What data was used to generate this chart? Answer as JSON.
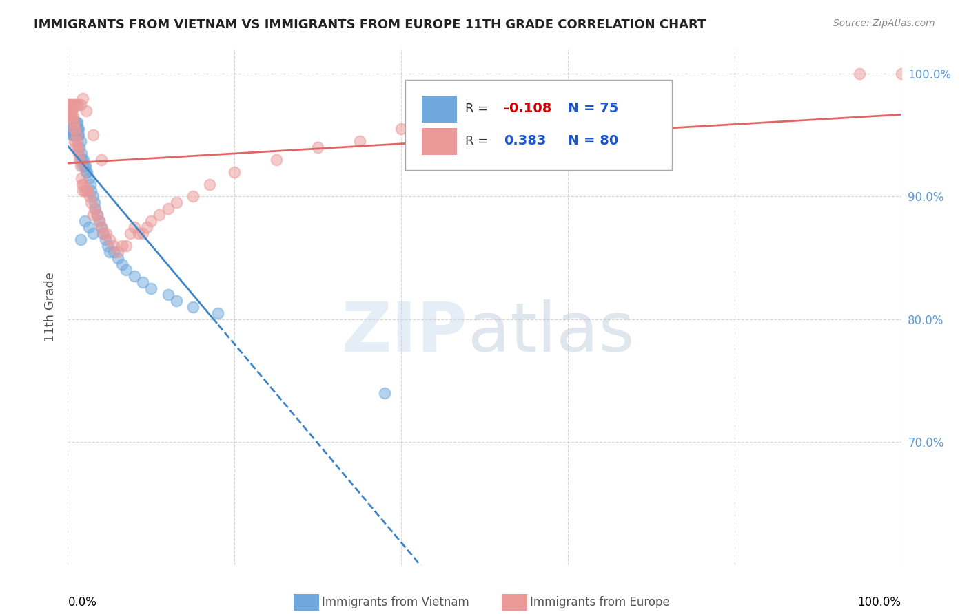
{
  "title": "IMMIGRANTS FROM VIETNAM VS IMMIGRANTS FROM EUROPE 11TH GRADE CORRELATION CHART",
  "source": "Source: ZipAtlas.com",
  "ylabel": "11th Grade",
  "xlim": [
    0.0,
    1.0
  ],
  "ylim": [
    0.6,
    1.02
  ],
  "yticks": [
    0.7,
    0.8,
    0.9,
    1.0
  ],
  "ytick_labels": [
    "70.0%",
    "80.0%",
    "90.0%",
    "100.0%"
  ],
  "legend_r_vietnam": "-0.108",
  "legend_n_vietnam": "75",
  "legend_r_europe": "0.383",
  "legend_n_europe": "80",
  "color_vietnam": "#6fa8dc",
  "color_europe": "#ea9999",
  "line_color_vietnam": "#3d85c8",
  "line_color_europe": "#e06666",
  "vietnam_x": [
    0.0,
    0.0,
    0.001,
    0.001,
    0.001,
    0.002,
    0.002,
    0.002,
    0.003,
    0.003,
    0.003,
    0.004,
    0.004,
    0.004,
    0.005,
    0.005,
    0.005,
    0.006,
    0.006,
    0.006,
    0.007,
    0.007,
    0.007,
    0.008,
    0.008,
    0.009,
    0.009,
    0.01,
    0.01,
    0.011,
    0.011,
    0.012,
    0.012,
    0.013,
    0.013,
    0.014,
    0.015,
    0.015,
    0.016,
    0.017,
    0.018,
    0.019,
    0.02,
    0.021,
    0.022,
    0.023,
    0.025,
    0.027,
    0.028,
    0.03,
    0.032,
    0.033,
    0.035,
    0.038,
    0.04,
    0.042,
    0.045,
    0.048,
    0.05,
    0.055,
    0.06,
    0.065,
    0.07,
    0.08,
    0.09,
    0.1,
    0.12,
    0.13,
    0.15,
    0.18,
    0.03,
    0.025,
    0.02,
    0.015,
    0.38
  ],
  "vietnam_y": [
    0.97,
    0.965,
    0.96,
    0.955,
    0.97,
    0.965,
    0.96,
    0.955,
    0.96,
    0.955,
    0.97,
    0.96,
    0.955,
    0.965,
    0.96,
    0.955,
    0.95,
    0.96,
    0.955,
    0.95,
    0.955,
    0.96,
    0.95,
    0.955,
    0.96,
    0.955,
    0.95,
    0.96,
    0.955,
    0.95,
    0.96,
    0.955,
    0.95,
    0.955,
    0.95,
    0.94,
    0.945,
    0.93,
    0.935,
    0.93,
    0.925,
    0.93,
    0.925,
    0.925,
    0.92,
    0.92,
    0.915,
    0.91,
    0.905,
    0.9,
    0.895,
    0.89,
    0.885,
    0.88,
    0.875,
    0.87,
    0.865,
    0.86,
    0.855,
    0.855,
    0.85,
    0.845,
    0.84,
    0.835,
    0.83,
    0.825,
    0.82,
    0.815,
    0.81,
    0.805,
    0.87,
    0.875,
    0.88,
    0.865,
    0.74
  ],
  "europe_x": [
    0.0,
    0.001,
    0.001,
    0.002,
    0.002,
    0.003,
    0.003,
    0.003,
    0.004,
    0.004,
    0.005,
    0.005,
    0.006,
    0.006,
    0.007,
    0.007,
    0.008,
    0.009,
    0.009,
    0.01,
    0.011,
    0.012,
    0.013,
    0.014,
    0.015,
    0.016,
    0.017,
    0.018,
    0.019,
    0.02,
    0.022,
    0.024,
    0.026,
    0.028,
    0.03,
    0.032,
    0.035,
    0.038,
    0.04,
    0.043,
    0.046,
    0.05,
    0.055,
    0.06,
    0.065,
    0.07,
    0.075,
    0.08,
    0.085,
    0.09,
    0.095,
    0.1,
    0.11,
    0.12,
    0.13,
    0.15,
    0.17,
    0.2,
    0.25,
    0.3,
    0.35,
    0.4,
    0.5,
    0.6,
    0.001,
    0.002,
    0.003,
    0.004,
    0.005,
    0.006,
    0.008,
    0.01,
    0.012,
    0.015,
    0.018,
    0.022,
    0.03,
    0.04,
    0.95,
    1.0
  ],
  "europe_y": [
    0.975,
    0.97,
    0.97,
    0.97,
    0.97,
    0.97,
    0.965,
    0.975,
    0.97,
    0.965,
    0.97,
    0.965,
    0.96,
    0.965,
    0.955,
    0.96,
    0.945,
    0.94,
    0.955,
    0.95,
    0.945,
    0.94,
    0.935,
    0.93,
    0.925,
    0.915,
    0.91,
    0.905,
    0.91,
    0.905,
    0.905,
    0.905,
    0.9,
    0.895,
    0.885,
    0.89,
    0.885,
    0.88,
    0.875,
    0.87,
    0.87,
    0.865,
    0.86,
    0.855,
    0.86,
    0.86,
    0.87,
    0.875,
    0.87,
    0.87,
    0.875,
    0.88,
    0.885,
    0.89,
    0.895,
    0.9,
    0.91,
    0.92,
    0.93,
    0.94,
    0.945,
    0.955,
    0.96,
    0.965,
    0.975,
    0.97,
    0.97,
    0.97,
    0.97,
    0.975,
    0.975,
    0.975,
    0.975,
    0.975,
    0.98,
    0.97,
    0.95,
    0.93,
    1.0,
    1.0
  ]
}
